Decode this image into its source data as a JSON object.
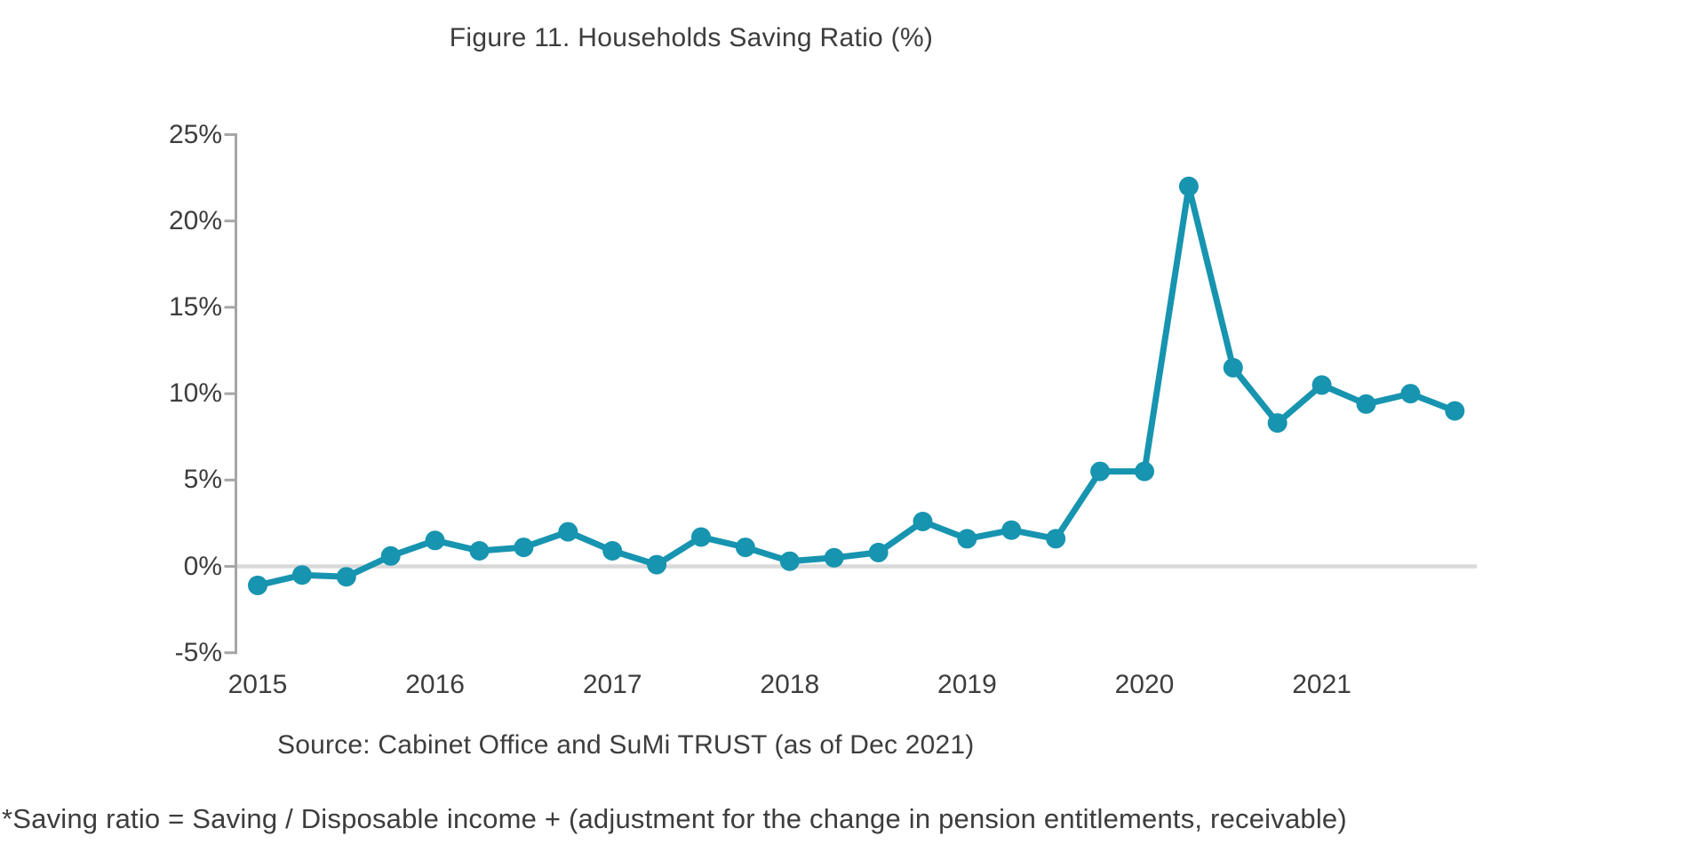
{
  "page": {
    "title": "Figure 11. Households Saving Ratio (%)",
    "source": "Source: Cabinet Office and SuMi TRUST (as of Dec 2021)",
    "footnote": "*Saving ratio = Saving / Disposable income + (adjustment for the change in pension entitlements, receivable)"
  },
  "chart_data": {
    "type": "line",
    "title": "Figure 11. Households Saving Ratio (%)",
    "x": [
      "2015Q1",
      "2015Q2",
      "2015Q3",
      "2015Q4",
      "2016Q1",
      "2016Q2",
      "2016Q3",
      "2016Q4",
      "2017Q1",
      "2017Q2",
      "2017Q3",
      "2017Q4",
      "2018Q1",
      "2018Q2",
      "2018Q3",
      "2018Q4",
      "2019Q1",
      "2019Q2",
      "2019Q3",
      "2019Q4",
      "2020Q1",
      "2020Q2",
      "2020Q3",
      "2020Q4",
      "2021Q1",
      "2021Q2",
      "2021Q3",
      "2021Q4"
    ],
    "series": [
      {
        "name": "Households saving ratio (%)",
        "values": [
          -1.1,
          -0.5,
          -0.6,
          0.6,
          1.5,
          0.9,
          1.1,
          2.0,
          0.9,
          0.1,
          1.7,
          1.1,
          0.3,
          0.5,
          0.8,
          2.6,
          1.6,
          2.1,
          1.6,
          5.5,
          5.5,
          22.0,
          11.5,
          8.3,
          10.5,
          9.4,
          10.0,
          9.0
        ]
      }
    ],
    "xlabel": "",
    "ylabel": "",
    "ylim": [
      -5,
      25
    ],
    "y_ticks": [
      25,
      20,
      15,
      10,
      5,
      0,
      -5
    ],
    "y_tick_labels": [
      "25%",
      "20%",
      "15%",
      "10%",
      "5%",
      "0%",
      "-5%"
    ],
    "x_year_tick_labels": [
      "2015",
      "2016",
      "2017",
      "2018",
      "2019",
      "2020",
      "2021"
    ],
    "legend": "none",
    "grid": "horizontal zero line only",
    "marker": "filled circle",
    "line_color": "#1794af",
    "marker_color": "#1794af",
    "zero_line_color": "#d9d9d9",
    "axis_color": "#a6a6a6",
    "text_color": "#3d3d3d"
  }
}
